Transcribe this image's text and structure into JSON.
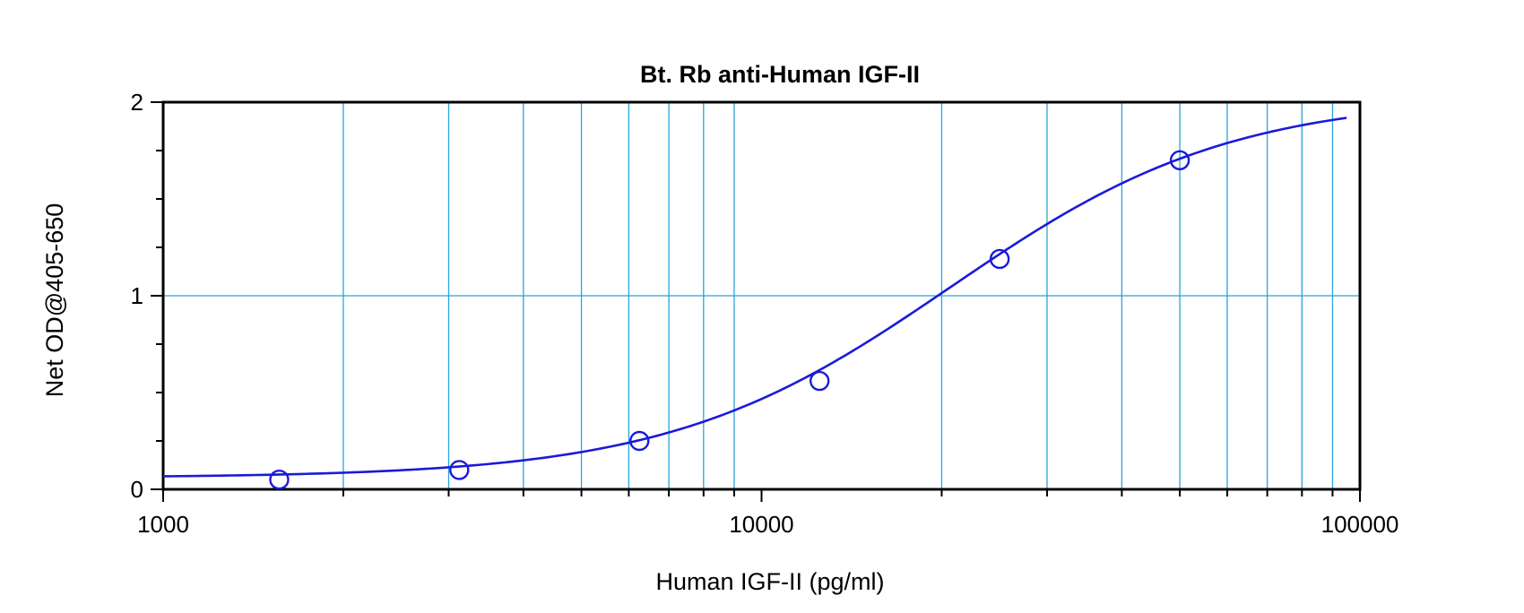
{
  "chart_data": {
    "type": "scatter",
    "title": "Bt. Rb anti-Human IGF-II",
    "xlabel": "Human IGF-II (pg/ml)",
    "ylabel": "Net OD@405-650",
    "x_scale": "log",
    "xlim": [
      1000,
      100000
    ],
    "ylim": [
      0,
      2
    ],
    "x_tick_labels": [
      "1000",
      "10000",
      "100000"
    ],
    "y_tick_labels": [
      "0",
      "1",
      "2"
    ],
    "grid": true,
    "series": [
      {
        "points": [
          {
            "x": 1563,
            "y": 0.05
          },
          {
            "x": 3125,
            "y": 0.1
          },
          {
            "x": 6250,
            "y": 0.25
          },
          {
            "x": 12500,
            "y": 0.56
          },
          {
            "x": 25000,
            "y": 1.19
          },
          {
            "x": 50000,
            "y": 1.7
          }
        ]
      }
    ],
    "fit_curve": {
      "type": "4PL",
      "bottom": 0.06,
      "top": 2.03,
      "ec50": 20700,
      "hill": 1.85,
      "x_range": [
        1000,
        95000
      ]
    },
    "colors": {
      "data": "#1a1ad9",
      "grid": "#29a3dc",
      "frame": "#000000"
    }
  }
}
